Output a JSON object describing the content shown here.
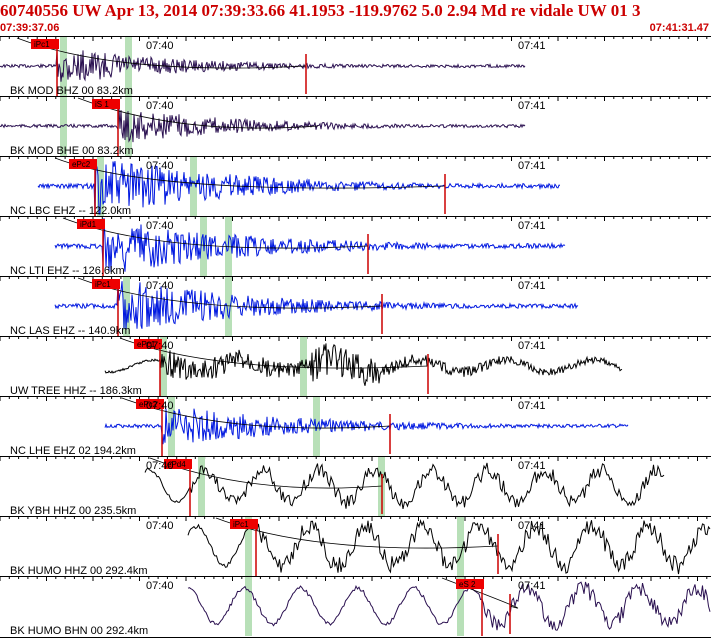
{
  "header": {
    "title": "60740556 UW Apr 13, 2014 07:39:33.66   41.1953 -119.9762  5.0 2.94 Md re vidale UW 01   3",
    "start_time": "07:39:37.06",
    "end_time": "07:41:31.47"
  },
  "colors": {
    "header_text": "#cc0000",
    "pick_flag": "#ee0000",
    "window_mark": "#b8e0b8"
  },
  "traces": [
    {
      "label": "BK MOD BHZ 00 83.2km",
      "pick": "iPc1",
      "color": "#2a1050",
      "time_a": "07:40",
      "time_b": "07:41"
    },
    {
      "label": "BK MOD BHE 00 83.2km",
      "pick": "iS 1",
      "color": "#2a1050",
      "time_a": "07:40",
      "time_b": "07:41"
    },
    {
      "label": "NC LBC EHZ -- 122.0km",
      "pick": "ePc2",
      "color": "#0018e0",
      "time_a": "07:40",
      "time_b": "07:41"
    },
    {
      "label": "NC LTI EHZ -- 126.6km",
      "pick": "iPd1",
      "color": "#0018e0",
      "time_a": "07:40",
      "time_b": "07:41"
    },
    {
      "label": "NC LAS EHZ -- 140.9km",
      "pick": "iPc1",
      "color": "#0018e0",
      "time_a": "07:40",
      "time_b": "07:41"
    },
    {
      "label": "UW TREE HHZ -- 186.3km",
      "pick": "ePc1",
      "color": "#000000",
      "time_a": "07:40",
      "time_b": "07:41"
    },
    {
      "label": "NC LHE EHZ 02 194.2km",
      "pick": "ePc2",
      "color": "#0018e0",
      "time_a": "07:40",
      "time_b": "07:41"
    },
    {
      "label": "BK YBH HHZ 00 235.5km",
      "pick": "ePd4",
      "color": "#000000",
      "time_a": "07:40",
      "time_b": "07:41"
    },
    {
      "label": "BK HUMO HHZ 00 292.4km",
      "pick": "iPc1",
      "color": "#000000",
      "time_a": "07:40",
      "time_b": "07:41"
    },
    {
      "label": "BK HUMO BHN 00 292.4km",
      "pick": "eS 2",
      "color": "#2a1050",
      "time_a": "07:40",
      "time_b": "07:41"
    }
  ]
}
